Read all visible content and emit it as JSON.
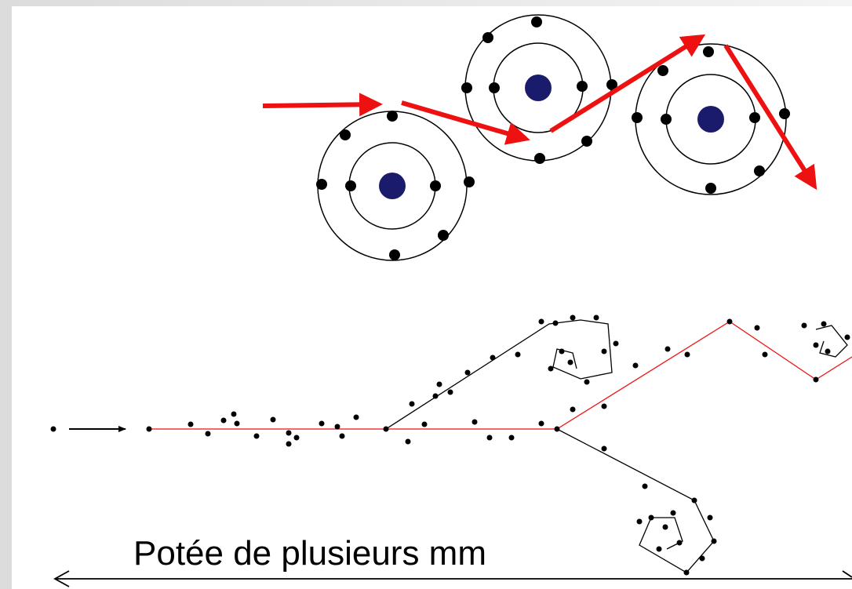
{
  "caption": "Potée de plusieurs mm"
}
